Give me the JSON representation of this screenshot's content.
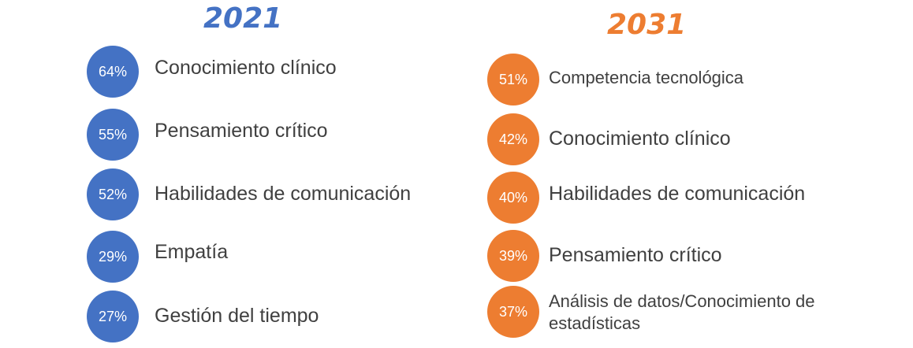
{
  "left": {
    "year": "2021",
    "color": "#4472c4",
    "items": [
      {
        "pct": "64%",
        "label": "Conocimiento clínico"
      },
      {
        "pct": "55%",
        "label": "Pensamiento crítico"
      },
      {
        "pct": "52%",
        "label": "Habilidades de comunicación"
      },
      {
        "pct": "29%",
        "label": "Empatía"
      },
      {
        "pct": "27%",
        "label": "Gestión del tiempo"
      }
    ]
  },
  "right": {
    "year": "2031",
    "color": "#ed7d31",
    "items": [
      {
        "pct": "51%",
        "label": "Competencia tecnológica"
      },
      {
        "pct": "42%",
        "label": "Conocimiento clínico"
      },
      {
        "pct": "40%",
        "label": "Habilidades de comunicación"
      },
      {
        "pct": "39%",
        "label": "Pensamiento crítico"
      },
      {
        "pct": "37%",
        "label": "Análisis de datos/Conocimiento de estadísticas"
      }
    ]
  }
}
